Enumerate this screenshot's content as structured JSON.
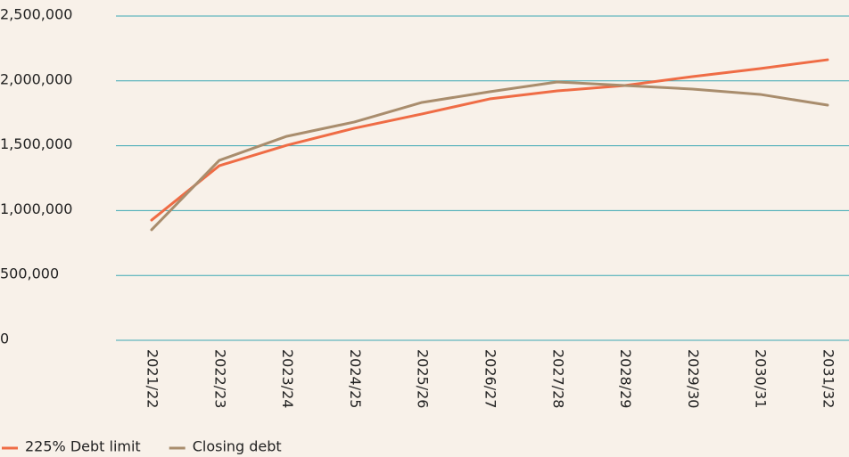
{
  "chart_data": {
    "type": "line",
    "categories": [
      "2021/22",
      "2022/23",
      "2023/24",
      "2024/25",
      "2025/26",
      "2026/27",
      "2027/28",
      "2028/29",
      "2029/30",
      "2030/31",
      "2031/32"
    ],
    "series": [
      {
        "name": "225% Debt limit",
        "color": "#ef6c45",
        "values": [
          927000,
          1346000,
          1504000,
          1635000,
          1745000,
          1861000,
          1923000,
          1964000,
          2033000,
          2095000,
          2163000
        ]
      },
      {
        "name": "Closing debt",
        "color": "#a98d6d",
        "values": [
          852000,
          1387000,
          1573000,
          1683000,
          1834000,
          1916000,
          1992000,
          1964000,
          1937000,
          1896000,
          1813000
        ]
      }
    ],
    "ylim": [
      0,
      2500000
    ],
    "yticks": [
      {
        "value": 0,
        "label": "0"
      },
      {
        "value": 500000,
        "label": "500,000"
      },
      {
        "value": 1000000,
        "label": "1,000,000"
      },
      {
        "value": 1500000,
        "label": "1,500,000"
      },
      {
        "value": 2000000,
        "label": "2,000,000"
      },
      {
        "value": 2500000,
        "label": "2,500,000"
      }
    ],
    "grid": true,
    "grid_color": "#3ba7b3",
    "legend": "bottom-left"
  }
}
